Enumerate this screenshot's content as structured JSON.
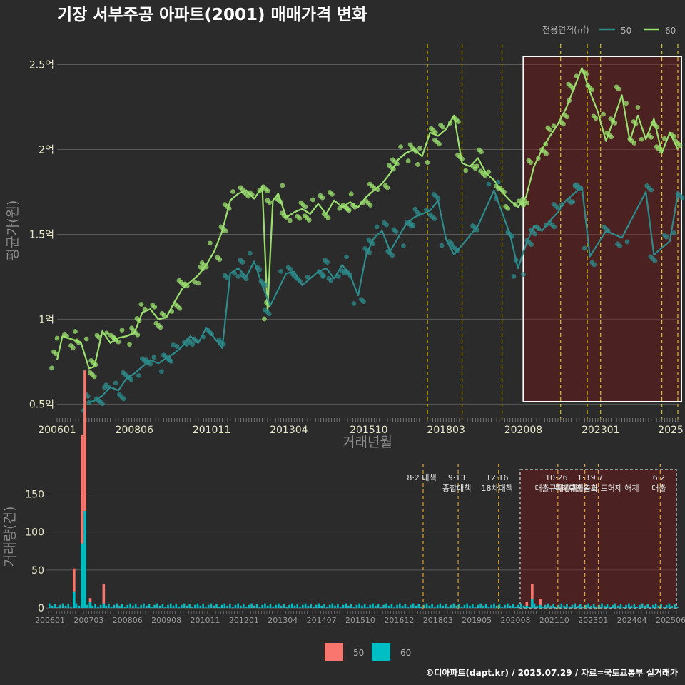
{
  "title": "기장 서부주공 아파트(2001) 매매가격 변화",
  "legend_top": {
    "title": "전용면적(㎡)",
    "items": [
      {
        "label": "50",
        "color": "#2e8b8b"
      },
      {
        "label": "60",
        "color": "#9be06f"
      }
    ]
  },
  "legend_bottom": {
    "items": [
      {
        "label": "50",
        "color": "#f8766d"
      },
      {
        "label": "60",
        "color": "#00bfc4"
      }
    ]
  },
  "footer": "©디아파트(dapt.kr) / 2025.07.29 / 자료=국토교통부 실거래가",
  "chart_data": [
    {
      "type": "line",
      "ylabel": "평균가(원)",
      "xlabel": "거래년월",
      "x_range": [
        "2006-01",
        "2025-06"
      ],
      "x_ticks": [
        "200601",
        "200806",
        "201011",
        "201304",
        "201510",
        "201803",
        "202008",
        "202301",
        "2025"
      ],
      "y_ticks": [
        {
          "value": 0.5,
          "label": "0.5억"
        },
        {
          "value": 1.0,
          "label": "1억"
        },
        {
          "value": 1.5,
          "label": "1.5억"
        },
        {
          "value": 2.0,
          "label": "2억"
        },
        {
          "value": 2.5,
          "label": "2.5억"
        }
      ],
      "ylim": [
        0.43,
        2.62
      ],
      "y_unit": "억원",
      "grid": true,
      "legend_position": "top-right",
      "highlight_range": [
        "2020-08",
        "2025-06"
      ],
      "event_dates": [
        "2017-08",
        "2018-09",
        "2019-12",
        "2021-10",
        "2022-08",
        "2023-01",
        "2024-12",
        "2025-06"
      ],
      "series": [
        {
          "name": "60",
          "color": "#9be06f",
          "points": [
            [
              "2006-01",
              0.76
            ],
            [
              "2006-03",
              0.9
            ],
            [
              "2006-07",
              0.88
            ],
            [
              "2006-10",
              0.86
            ],
            [
              "2007-01",
              0.71
            ],
            [
              "2007-03",
              0.72
            ],
            [
              "2007-06",
              0.93
            ],
            [
              "2007-09",
              0.86
            ],
            [
              "2007-12",
              0.89
            ],
            [
              "2008-03",
              0.9
            ],
            [
              "2008-06",
              0.92
            ],
            [
              "2008-09",
              1.04
            ],
            [
              "2008-12",
              1.06
            ],
            [
              "2009-03",
              1.0
            ],
            [
              "2009-06",
              1.01
            ],
            [
              "2009-09",
              1.1
            ],
            [
              "2009-12",
              1.18
            ],
            [
              "2010-03",
              1.22
            ],
            [
              "2010-06",
              1.26
            ],
            [
              "2010-09",
              1.32
            ],
            [
              "2010-12",
              1.4
            ],
            [
              "2011-03",
              1.52
            ],
            [
              "2011-06",
              1.7
            ],
            [
              "2011-09",
              1.74
            ],
            [
              "2011-12",
              1.76
            ],
            [
              "2012-03",
              1.71
            ],
            [
              "2012-06",
              1.78
            ],
            [
              "2012-08",
              1.05
            ],
            [
              "2012-10",
              1.7
            ],
            [
              "2012-12",
              1.74
            ],
            [
              "2013-03",
              1.6
            ],
            [
              "2013-06",
              1.63
            ],
            [
              "2013-09",
              1.65
            ],
            [
              "2013-12",
              1.62
            ],
            [
              "2014-03",
              1.68
            ],
            [
              "2014-06",
              1.62
            ],
            [
              "2014-09",
              1.7
            ],
            [
              "2014-12",
              1.66
            ],
            [
              "2015-03",
              1.69
            ],
            [
              "2015-06",
              1.66
            ],
            [
              "2015-09",
              1.72
            ],
            [
              "2015-12",
              1.76
            ],
            [
              "2016-03",
              1.8
            ],
            [
              "2016-06",
              1.86
            ],
            [
              "2016-09",
              1.94
            ],
            [
              "2016-12",
              1.98
            ],
            [
              "2017-03",
              2.0
            ],
            [
              "2017-06",
              1.96
            ],
            [
              "2017-09",
              2.1
            ],
            [
              "2017-12",
              2.08
            ],
            [
              "2018-03",
              2.12
            ],
            [
              "2018-06",
              2.2
            ],
            [
              "2018-09",
              1.92
            ],
            [
              "2018-12",
              1.9
            ],
            [
              "2019-03",
              1.95
            ],
            [
              "2019-06",
              1.86
            ],
            [
              "2019-09",
              1.82
            ],
            [
              "2019-12",
              1.75
            ],
            [
              "2020-03",
              1.7
            ],
            [
              "2020-06",
              1.66
            ],
            [
              "2020-09",
              1.72
            ],
            [
              "2020-12",
              1.9
            ],
            [
              "2021-03",
              2.0
            ],
            [
              "2021-06",
              2.08
            ],
            [
              "2021-09",
              2.15
            ],
            [
              "2021-12",
              2.24
            ],
            [
              "2022-03",
              2.36
            ],
            [
              "2022-06",
              2.48
            ],
            [
              "2022-09",
              2.34
            ],
            [
              "2022-12",
              2.22
            ],
            [
              "2023-03",
              2.05
            ],
            [
              "2023-06",
              2.18
            ],
            [
              "2023-09",
              2.32
            ],
            [
              "2023-12",
              2.05
            ],
            [
              "2024-03",
              2.2
            ],
            [
              "2024-06",
              2.06
            ],
            [
              "2024-09",
              2.18
            ],
            [
              "2024-12",
              1.98
            ],
            [
              "2025-03",
              2.1
            ],
            [
              "2025-06",
              2.0
            ]
          ]
        },
        {
          "name": "50",
          "color": "#2e8b8b",
          "points": [
            [
              "2007-01",
              0.51
            ],
            [
              "2007-03",
              0.52
            ],
            [
              "2007-06",
              0.55
            ],
            [
              "2007-09",
              0.6
            ],
            [
              "2007-12",
              0.58
            ],
            [
              "2008-03",
              0.65
            ],
            [
              "2008-06",
              0.68
            ],
            [
              "2008-09",
              0.72
            ],
            [
              "2008-12",
              0.76
            ],
            [
              "2009-03",
              0.74
            ],
            [
              "2009-06",
              0.77
            ],
            [
              "2009-09",
              0.8
            ],
            [
              "2009-12",
              0.84
            ],
            [
              "2010-03",
              0.9
            ],
            [
              "2010-06",
              0.86
            ],
            [
              "2010-09",
              0.95
            ],
            [
              "2011-03",
              0.83
            ],
            [
              "2011-06",
              1.27
            ],
            [
              "2011-09",
              1.3
            ],
            [
              "2011-12",
              1.25
            ],
            [
              "2012-03",
              1.34
            ],
            [
              "2012-06",
              1.2
            ],
            [
              "2012-09",
              1.08
            ],
            [
              "2013-03",
              1.27
            ],
            [
              "2013-06",
              1.28
            ],
            [
              "2013-09",
              1.2
            ],
            [
              "2014-03",
              1.28
            ],
            [
              "2014-06",
              1.3
            ],
            [
              "2014-09",
              1.24
            ],
            [
              "2014-12",
              1.32
            ],
            [
              "2015-03",
              1.26
            ],
            [
              "2015-06",
              1.14
            ],
            [
              "2015-09",
              1.38
            ],
            [
              "2015-12",
              1.48
            ],
            [
              "2016-03",
              1.52
            ],
            [
              "2016-06",
              1.4
            ],
            [
              "2016-09",
              1.48
            ],
            [
              "2016-12",
              1.56
            ],
            [
              "2017-03",
              1.6
            ],
            [
              "2017-06",
              1.62
            ],
            [
              "2017-09",
              1.64
            ],
            [
              "2017-12",
              1.7
            ],
            [
              "2018-03",
              1.47
            ],
            [
              "2018-06",
              1.38
            ],
            [
              "2019-03",
              1.55
            ],
            [
              "2019-09",
              1.76
            ],
            [
              "2020-03",
              1.5
            ],
            [
              "2020-06",
              1.3
            ],
            [
              "2020-09",
              1.44
            ],
            [
              "2020-12",
              1.55
            ],
            [
              "2021-03",
              1.52
            ],
            [
              "2021-06",
              1.58
            ],
            [
              "2021-09",
              1.63
            ],
            [
              "2021-12",
              1.7
            ],
            [
              "2022-03",
              1.74
            ],
            [
              "2022-06",
              1.78
            ],
            [
              "2022-09",
              1.37
            ],
            [
              "2023-03",
              1.52
            ],
            [
              "2023-09",
              1.48
            ],
            [
              "2024-06",
              1.75
            ],
            [
              "2024-09",
              1.38
            ],
            [
              "2025-03",
              1.46
            ],
            [
              "2025-06",
              1.74
            ]
          ]
        }
      ]
    },
    {
      "type": "bar",
      "ylabel": "거래량(건)",
      "stacked": true,
      "x_ticks": [
        "200601",
        "200703",
        "200806",
        "200908",
        "201011",
        "201201",
        "201304",
        "201407",
        "201510",
        "201612",
        "201803",
        "201905",
        "202008",
        "202110",
        "202301",
        "202404",
        "202506"
      ],
      "y_ticks": [
        0,
        50,
        100,
        150
      ],
      "ylim": [
        0,
        190
      ],
      "grid": true,
      "highlight_range": [
        "2020-08",
        "2025-06"
      ],
      "events": [
        {
          "date": "2017-08",
          "lines": [
            "8·2 대책"
          ]
        },
        {
          "date": "2018-09",
          "lines": [
            "9·13",
            "종합대책"
          ]
        },
        {
          "date": "2019-12",
          "lines": [
            "12·16",
            "18차대책"
          ]
        },
        {
          "date": "2021-10",
          "lines": [
            "10·26",
            "대출규제강화"
          ]
        },
        {
          "date": "2022-08",
          "lines": [
            "1·3",
            "규제완화"
          ]
        },
        {
          "date": "2023-01",
          "lines": [
            "9·7",
            "특례대출축소 토허제 해제"
          ]
        },
        {
          "date": "2024-12",
          "lines": [
            "6·2",
            "대출"
          ]
        }
      ],
      "series": [
        {
          "name": "50",
          "color": "#f8766d",
          "values": [
            [
              "2006-10",
              30
            ],
            [
              "2007-01",
              143
            ],
            [
              "2007-02",
              185
            ],
            [
              "2007-04",
              5
            ],
            [
              "2007-09",
              25
            ],
            [
              "2020-10",
              5
            ],
            [
              "2020-12",
              20
            ],
            [
              "2021-03",
              8
            ]
          ]
        },
        {
          "name": "60",
          "color": "#00bfc4",
          "values": [
            [
              "2006-10",
              22
            ],
            [
              "2007-01",
              85
            ],
            [
              "2007-02",
              128
            ],
            [
              "2007-04",
              8
            ],
            [
              "2007-09",
              6
            ],
            [
              "2020-10",
              3
            ],
            [
              "2020-12",
              12
            ],
            [
              "2021-03",
              4
            ]
          ]
        }
      ]
    }
  ]
}
